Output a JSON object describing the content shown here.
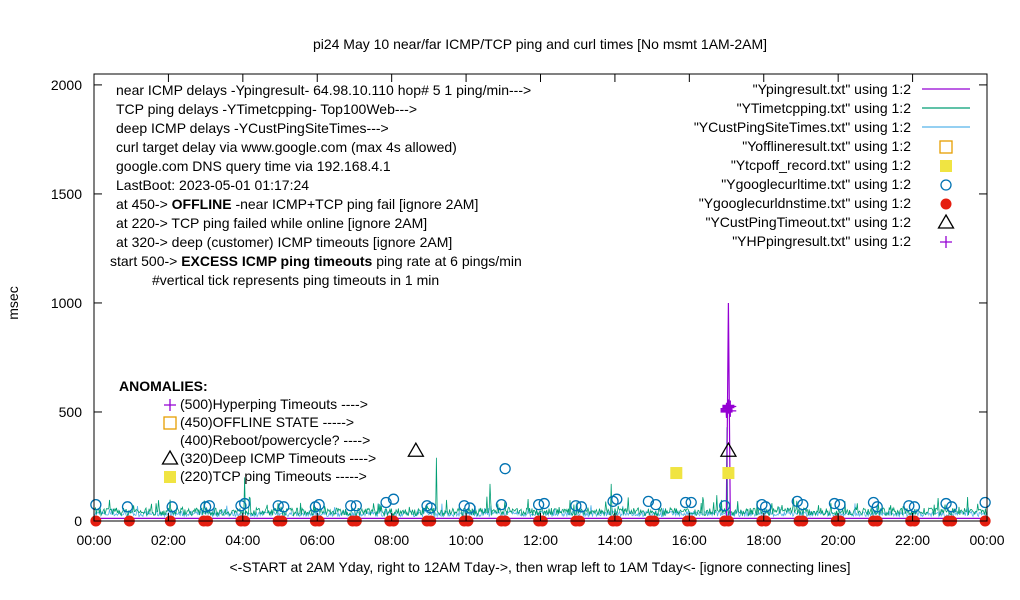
{
  "chart_data": {
    "type": "line",
    "title": "pi24 May 10  near/far ICMP/TCP ping and curl times [No msmt 1AM-2AM]",
    "xlabel": "<-START at 2AM Yday, right to 12AM Tday->, then wrap left to 1AM Tday<- [ignore connecting lines]",
    "ylabel": "msec",
    "ylim": [
      0,
      2050
    ],
    "yticks": [
      "0",
      "500",
      "1000",
      "1500",
      "2000"
    ],
    "ytick_values": [
      0,
      500,
      1000,
      1500,
      2000
    ],
    "xticks": [
      "00:00",
      "02:00",
      "04:00",
      "06:00",
      "08:00",
      "10:00",
      "12:00",
      "14:00",
      "16:00",
      "18:00",
      "20:00",
      "22:00",
      "00:00"
    ],
    "xlim": [
      0,
      24
    ],
    "grid": false,
    "legend_position": "top-right",
    "colors": {
      "purple": "#9400d3",
      "teal": "#009e73",
      "skyblue": "#56b4e9",
      "orange": "#e69f00",
      "yellow": "#f0e442",
      "blue": "#0072b2",
      "red": "#e51e10",
      "black": "#000000"
    },
    "legend": [
      {
        "label": "\"Ypingresult.txt\" using 1:2",
        "style": "line",
        "color": "#9400d3"
      },
      {
        "label": "\"YTimetcpping.txt\" using 1:2",
        "style": "line",
        "color": "#009e73"
      },
      {
        "label": "\"YCustPingSiteTimes.txt\" using 1:2",
        "style": "line",
        "color": "#56b4e9"
      },
      {
        "label": "\"Yofflineresult.txt\" using 1:2",
        "style": "open-square",
        "color": "#e69f00"
      },
      {
        "label": "\"Ytcpoff_record.txt\" using 1:2",
        "style": "filled-square",
        "color": "#f0e442"
      },
      {
        "label": "\"Ygooglecurltime.txt\" using 1:2",
        "style": "open-circle",
        "color": "#0072b2"
      },
      {
        "label": "\"Ygooglecurldnstime.txt\" using 1:2",
        "style": "filled-circle",
        "color": "#e51e10"
      },
      {
        "label": "\"YCustPingTimeout.txt\" using 1:2",
        "style": "open-triangle",
        "color": "#000000"
      },
      {
        "label": "\"YHPpingresult.txt\" using 1:2",
        "style": "plus",
        "color": "#9400d3"
      }
    ],
    "info_lines": [
      "near ICMP delays -Ypingresult- 64.98.10.110 hop# 5 1 ping/min--->",
      "TCP ping delays -YTimetcpping- Top100Web--->",
      "deep ICMP delays -YCustPingSiteTimes--->",
      "curl target delay via www.google.com (max 4s allowed)",
      "google.com DNS query time via 192.168.4.1",
      "LastBoot: 2023-05-01 01:17:24"
    ],
    "threshold_lines": [
      {
        "prefix": "at 450->",
        "bold": "OFFLINE",
        "suffix": "-near ICMP+TCP ping fail [ignore 2AM]"
      },
      {
        "prefix": "at 220-> TCP ping failed while online [ignore 2AM]",
        "bold": "",
        "suffix": ""
      },
      {
        "prefix": "at 320-> deep (customer) ICMP timeouts [ignore 2AM]",
        "bold": "",
        "suffix": ""
      },
      {
        "prefix": "start 500->",
        "bold": "EXCESS ICMP ping timeouts",
        "suffix": "ping rate at 6 pings/min"
      }
    ],
    "vertical_tick_note": "#vertical tick represents ping timeouts in 1 min",
    "anomalies_title": "ANOMALIES:",
    "anomalies": [
      {
        "label": "(500)Hyperping Timeouts ---->",
        "marker": "plus",
        "color": "#9400d3"
      },
      {
        "label": "(450)OFFLINE STATE ----->",
        "marker": "open-square",
        "color": "#e69f00"
      },
      {
        "label": "(400)Reboot/powercycle? ---->",
        "marker": "none",
        "color": "#000000"
      },
      {
        "label": "(320)Deep ICMP Timeouts ---->",
        "marker": "open-triangle",
        "color": "#000000"
      },
      {
        "label": "(220)TCP ping Timeouts ----->",
        "marker": "filled-square",
        "color": "#f0e442"
      }
    ],
    "series": [
      {
        "name": "\"Ypingresult.txt\" using 1:2",
        "style": "line",
        "note": "near ICMP delays ~10-20 msec baseline; spike near 17:05",
        "x": [
          0.0,
          2.0,
          4.0,
          6.0,
          8.0,
          10.0,
          12.0,
          14.0,
          16.0,
          17.0,
          17.05,
          17.1,
          18.0,
          20.0,
          22.0,
          24.0
        ],
        "y": [
          12,
          12,
          12,
          12,
          12,
          12,
          12,
          12,
          12,
          12,
          1000,
          12,
          12,
          12,
          12,
          12
        ]
      },
      {
        "name": "\"YTimetcpping.txt\" using 1:2",
        "style": "line",
        "note": "TCP ping delays ~20-100 msec baseline with spikes",
        "spikes": [
          {
            "x": 4.05,
            "y": 200
          },
          {
            "x": 9.2,
            "y": 290
          },
          {
            "x": 10.65,
            "y": 170
          },
          {
            "x": 13.9,
            "y": 170
          },
          {
            "x": 17.0,
            "y": 430
          }
        ]
      },
      {
        "name": "\"YCustPingSiteTimes.txt\" using 1:2",
        "style": "line",
        "note": "deep ICMP delays ~20-60 msec baseline"
      },
      {
        "name": "\"Ytcpoff_record.txt\" using 1:2",
        "style": "filled-square",
        "x": [
          15.65,
          17.05
        ],
        "y": [
          220,
          220
        ]
      },
      {
        "name": "\"Ygooglecurltime.txt\" using 1:2",
        "style": "open-circle",
        "x": [
          0.05,
          0.9,
          2.1,
          3.0,
          3.1,
          3.95,
          4.05,
          4.95,
          5.1,
          5.95,
          6.05,
          6.9,
          7.05,
          7.85,
          8.05,
          8.95,
          9.05,
          9.95,
          10.1,
          10.95,
          11.95,
          12.1,
          12.95,
          13.1,
          13.95,
          14.05,
          14.9,
          15.1,
          15.9,
          16.05,
          16.95,
          17.95,
          18.05,
          18.9,
          19.05,
          19.9,
          20.05,
          20.95,
          21.05,
          21.9,
          22.05,
          22.9,
          23.05,
          23.95
        ],
        "y": [
          75,
          65,
          65,
          65,
          70,
          70,
          80,
          70,
          65,
          65,
          75,
          70,
          70,
          85,
          100,
          70,
          60,
          70,
          60,
          75,
          75,
          80,
          70,
          65,
          90,
          100,
          90,
          75,
          85,
          85,
          70,
          75,
          65,
          90,
          75,
          80,
          75,
          85,
          65,
          70,
          65,
          80,
          65,
          85
        ]
      },
      {
        "name": "\"Ygooglecurldnstime.txt\" using 1:2",
        "style": "filled-circle",
        "x": [
          0.05,
          0.95,
          2.05,
          2.95,
          3.05,
          3.95,
          4.05,
          4.95,
          5.05,
          5.95,
          6.05,
          6.95,
          7.05,
          7.95,
          8.05,
          8.95,
          9.05,
          9.95,
          10.05,
          10.95,
          11.05,
          11.95,
          12.05,
          12.95,
          13.05,
          13.95,
          14.05,
          14.95,
          15.05,
          15.95,
          16.05,
          16.95,
          17.05,
          17.95,
          18.05,
          18.95,
          19.05,
          19.95,
          20.05,
          20.95,
          21.05,
          21.95,
          22.05,
          22.95,
          23.05,
          23.95
        ],
        "y": [
          0,
          0,
          0,
          0,
          0,
          0,
          0,
          0,
          0,
          0,
          0,
          0,
          0,
          0,
          0,
          0,
          0,
          0,
          0,
          0,
          0,
          0,
          0,
          0,
          0,
          0,
          0,
          0,
          0,
          0,
          0,
          0,
          0,
          0,
          0,
          0,
          0,
          0,
          0,
          0,
          0,
          0,
          0,
          0,
          0,
          0
        ]
      },
      {
        "name": "\"YCustPingTimeout.txt\" using 1:2",
        "style": "open-triangle",
        "x": [
          8.65,
          17.05
        ],
        "y": [
          320,
          320
        ]
      },
      {
        "name": "\"YHPpingresult.txt\" using 1:2",
        "style": "plus",
        "x": [
          17.0,
          17.0,
          17.0,
          17.0,
          17.05,
          17.05,
          17.05,
          17.1,
          17.1
        ],
        "y": [
          500,
          505,
          510,
          515,
          520,
          525,
          530,
          505,
          525
        ]
      }
    ],
    "extra_points": [
      {
        "style": "open-circle",
        "x": 11.05,
        "y": 240
      }
    ]
  }
}
